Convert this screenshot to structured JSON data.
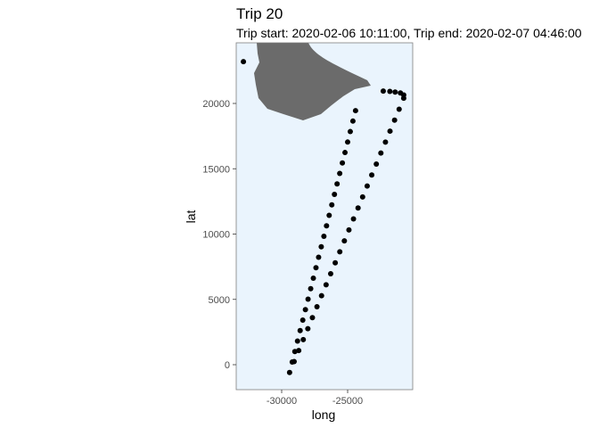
{
  "chart_data": {
    "type": "scatter",
    "title": "Trip 20",
    "subtitle": "Trip start: 2020-02-06 10:11:00, Trip end: 2020-02-07 04:46:00",
    "x_label": "long",
    "y_label": "lat",
    "color": "#000000",
    "x": [
      -29400,
      -29200,
      -29000,
      -28800,
      -28600,
      -28400,
      -28200,
      -28000,
      -27800,
      -27600,
      -27400,
      -27200,
      -27000,
      -26800,
      -26600,
      -26400,
      -26200,
      -26000,
      -25800,
      -25600,
      -25400,
      -25200,
      -25000,
      -24800,
      -24600,
      -24400,
      -29054,
      -28708,
      -28362,
      -28016,
      -27670,
      -27324,
      -26978,
      -26632,
      -26286,
      -25940,
      -25594,
      -25248,
      -24902,
      -24556,
      -24210,
      -23864,
      -23518,
      -23172,
      -22826,
      -22480,
      -22134,
      -21788,
      -21442,
      -21096,
      -20750,
      -20750,
      -21000,
      -21400,
      -21800,
      -22300,
      -32900
    ],
    "values": [
      -600,
      202,
      1004,
      1806,
      2608,
      3410,
      4212,
      5014,
      5816,
      6618,
      7420,
      8222,
      9024,
      9826,
      10628,
      11430,
      12232,
      13034,
      13836,
      14638,
      15440,
      16242,
      17044,
      17846,
      18648,
      19450,
      240,
      1080,
      1920,
      2760,
      3600,
      4440,
      5280,
      6120,
      6960,
      7800,
      8640,
      9480,
      10320,
      11160,
      12000,
      12840,
      13680,
      14520,
      15360,
      16200,
      17040,
      17880,
      18720,
      19560,
      20400,
      20650,
      20800,
      20870,
      20920,
      20950,
      23200
    ],
    "xlim": [
      -33446,
      -20068
    ],
    "xticks": [
      -30000,
      -25000
    ],
    "ylim": [
      -1911,
      24642
    ],
    "yticks": [
      0,
      5000,
      10000,
      15000,
      20000
    ],
    "panel_color": "#eaf4fd",
    "grid": false
  }
}
